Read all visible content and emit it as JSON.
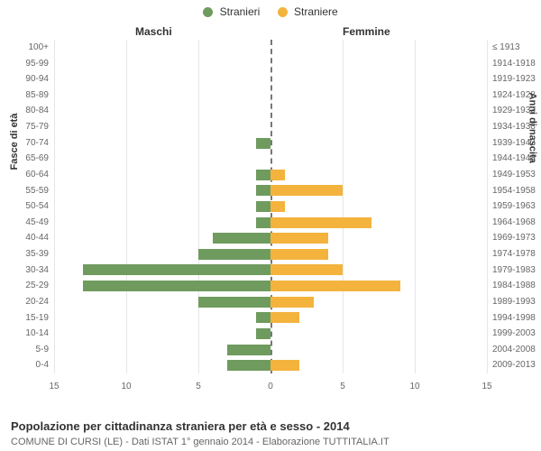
{
  "legend": {
    "male": {
      "label": "Stranieri",
      "color": "#6f9b5f"
    },
    "female": {
      "label": "Straniere",
      "color": "#f3b33d"
    }
  },
  "col_titles": {
    "left": "Maschi",
    "right": "Femmine"
  },
  "axis_titles": {
    "left": "Fasce di età",
    "right": "Anni di nascita"
  },
  "chart": {
    "type": "population-pyramid",
    "x_max": 15,
    "x_ticks_left": [
      15,
      10,
      5,
      0
    ],
    "x_ticks_right": [
      5,
      10,
      15
    ],
    "grid_color": "#e6e6e6",
    "center_color": "#777777",
    "background_color": "#ffffff",
    "male_color": "#6f9b5f",
    "female_color": "#f3b33d",
    "label_fontsize": 10,
    "rows": [
      {
        "age": "100+",
        "birth": "≤ 1913",
        "m": 0,
        "f": 0
      },
      {
        "age": "95-99",
        "birth": "1914-1918",
        "m": 0,
        "f": 0
      },
      {
        "age": "90-94",
        "birth": "1919-1923",
        "m": 0,
        "f": 0
      },
      {
        "age": "85-89",
        "birth": "1924-1928",
        "m": 0,
        "f": 0
      },
      {
        "age": "80-84",
        "birth": "1929-1933",
        "m": 0,
        "f": 0
      },
      {
        "age": "75-79",
        "birth": "1934-1938",
        "m": 0,
        "f": 0
      },
      {
        "age": "70-74",
        "birth": "1939-1943",
        "m": 1,
        "f": 0
      },
      {
        "age": "65-69",
        "birth": "1944-1948",
        "m": 0,
        "f": 0
      },
      {
        "age": "60-64",
        "birth": "1949-1953",
        "m": 1,
        "f": 1
      },
      {
        "age": "55-59",
        "birth": "1954-1958",
        "m": 1,
        "f": 5
      },
      {
        "age": "50-54",
        "birth": "1959-1963",
        "m": 1,
        "f": 1
      },
      {
        "age": "45-49",
        "birth": "1964-1968",
        "m": 1,
        "f": 7
      },
      {
        "age": "40-44",
        "birth": "1969-1973",
        "m": 4,
        "f": 4
      },
      {
        "age": "35-39",
        "birth": "1974-1978",
        "m": 5,
        "f": 4
      },
      {
        "age": "30-34",
        "birth": "1979-1983",
        "m": 13,
        "f": 5
      },
      {
        "age": "25-29",
        "birth": "1984-1988",
        "m": 13,
        "f": 9
      },
      {
        "age": "20-24",
        "birth": "1989-1993",
        "m": 5,
        "f": 3
      },
      {
        "age": "15-19",
        "birth": "1994-1998",
        "m": 1,
        "f": 2
      },
      {
        "age": "10-14",
        "birth": "1999-2003",
        "m": 1,
        "f": 0
      },
      {
        "age": "5-9",
        "birth": "2004-2008",
        "m": 3,
        "f": 0
      },
      {
        "age": "0-4",
        "birth": "2009-2013",
        "m": 3,
        "f": 2
      }
    ]
  },
  "footer": {
    "title": "Popolazione per cittadinanza straniera per età e sesso - 2014",
    "sub": "COMUNE DI CURSI (LE) - Dati ISTAT 1° gennaio 2014 - Elaborazione TUTTITALIA.IT"
  }
}
